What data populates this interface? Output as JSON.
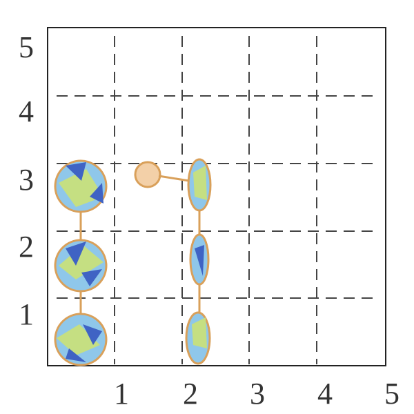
{
  "x_labels": [
    1,
    2,
    3,
    4,
    5
  ],
  "y_labels": [
    5,
    4,
    3,
    2,
    1
  ]
}
